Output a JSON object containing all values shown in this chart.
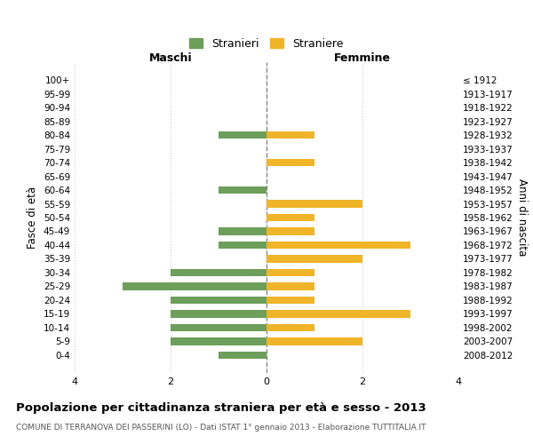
{
  "age_groups": [
    "100+",
    "95-99",
    "90-94",
    "85-89",
    "80-84",
    "75-79",
    "70-74",
    "65-69",
    "60-64",
    "55-59",
    "50-54",
    "45-49",
    "40-44",
    "35-39",
    "30-34",
    "25-29",
    "20-24",
    "15-19",
    "10-14",
    "5-9",
    "0-4"
  ],
  "birth_years": [
    "≤ 1912",
    "1913-1917",
    "1918-1922",
    "1923-1927",
    "1928-1932",
    "1933-1937",
    "1938-1942",
    "1943-1947",
    "1948-1952",
    "1953-1957",
    "1958-1962",
    "1963-1967",
    "1968-1972",
    "1973-1977",
    "1978-1982",
    "1983-1987",
    "1988-1992",
    "1993-1997",
    "1998-2002",
    "2003-2007",
    "2008-2012"
  ],
  "stranieri": [
    0,
    0,
    0,
    0,
    1,
    0,
    0,
    0,
    1,
    0,
    0,
    1,
    1,
    0,
    2,
    3,
    2,
    2,
    2,
    2,
    1
  ],
  "straniere": [
    0,
    0,
    0,
    0,
    1,
    0,
    1,
    0,
    0,
    2,
    1,
    1,
    3,
    2,
    1,
    1,
    1,
    3,
    1,
    2,
    0
  ],
  "color_stranieri": "#6d9e5a",
  "color_straniere": "#f0b429",
  "xlim": 4,
  "xlabel_left": "Maschi",
  "xlabel_right": "Femmine",
  "ylabel_left": "Fasce di età",
  "ylabel_right": "Anni di nascita",
  "title": "Popolazione per cittadinanza straniera per età e sesso - 2013",
  "subtitle": "COMUNE DI TERRANOVA DEI PASSERINI (LO) - Dati ISTAT 1° gennaio 2013 - Elaborazione TUTTITALIA.IT",
  "legend_stranieri": "Stranieri",
  "legend_straniere": "Straniere",
  "background_color": "#ffffff",
  "grid_color": "#cccccc"
}
